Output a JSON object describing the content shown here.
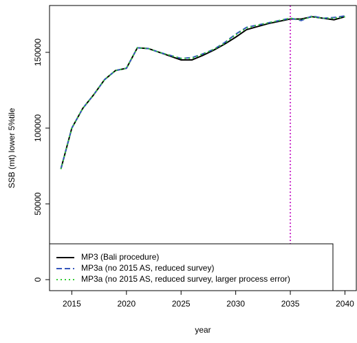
{
  "chart_data": {
    "type": "line",
    "x_label": "year",
    "y_label": "SSB (mt) lower 5%tile",
    "x": [
      2014,
      2015,
      2016,
      2017,
      2018,
      2019,
      2020,
      2021,
      2022,
      2023,
      2024,
      2025,
      2026,
      2027,
      2028,
      2029,
      2030,
      2031,
      2032,
      2033,
      2034,
      2035,
      2036,
      2037,
      2038,
      2039,
      2040
    ],
    "series": [
      {
        "name": "MP3 (Bali procedure)",
        "color": "#000000",
        "dash": "solid",
        "values": [
          73000,
          100000,
          113000,
          122000,
          132000,
          138000,
          139500,
          153000,
          152500,
          150000,
          147500,
          145000,
          145000,
          148000,
          151500,
          155500,
          160000,
          165000,
          167000,
          169000,
          170500,
          172000,
          172000,
          173500,
          172500,
          171500,
          173500
        ]
      },
      {
        "name": "MP3a (no 2015 AS, reduced survey)",
        "color": "#3355bb",
        "dash": "dashed",
        "values": [
          73000,
          100000,
          113000,
          122000,
          132000,
          138000,
          139500,
          153000,
          152500,
          150000,
          148000,
          146000,
          146500,
          149000,
          152000,
          156500,
          162000,
          166500,
          168000,
          169500,
          171000,
          172500,
          171000,
          174000,
          172500,
          173000,
          174000
        ]
      },
      {
        "name": "MP3a (no 2015 AS, reduced survey, larger process error)",
        "color": "#33cc33",
        "dash": "dotted",
        "values": [
          73000,
          100000,
          113000,
          122000,
          132000,
          138000,
          139500,
          153000,
          152500,
          150000,
          148000,
          146000,
          146000,
          149000,
          152000,
          156000,
          161500,
          166000,
          168000,
          169500,
          171000,
          172500,
          171500,
          173500,
          172500,
          172500,
          173500
        ]
      }
    ],
    "vline": {
      "value": 2035,
      "color": "#cc33cc"
    },
    "xlim": [
      2012.96,
      2041.04
    ],
    "ylim": [
      -7270,
      180900
    ],
    "xticks": [
      2015,
      2020,
      2025,
      2030,
      2035,
      2040
    ],
    "yticks": [
      0,
      50000,
      100000,
      150000
    ],
    "legend": "bottomleft"
  }
}
